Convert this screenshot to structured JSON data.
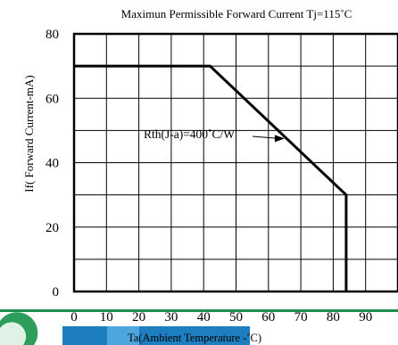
{
  "chart_data": {
    "type": "line",
    "title": "Maximun Permissible Forward Current Tj=115˚C",
    "xlabel": "Ta(Ambient Temperature -˚C)",
    "ylabel": "If( Forward Current-mA)",
    "xlim": [
      0,
      100
    ],
    "ylim": [
      0,
      80
    ],
    "x_ticks": [
      0,
      10,
      20,
      30,
      40,
      50,
      60,
      70,
      80,
      90
    ],
    "y_ticks": [
      0,
      20,
      40,
      60,
      80
    ],
    "x_grid_step": 10,
    "y_grid_step": 10,
    "grid": true,
    "series": [
      {
        "name": "",
        "x": [
          0,
          42,
          84,
          84
        ],
        "y": [
          70,
          70,
          30,
          0
        ]
      }
    ],
    "annotations": [
      {
        "text": "Rth(J-a)=400˚C/W",
        "arrow_to": {
          "x": 65,
          "y": 47.5
        }
      }
    ]
  },
  "colors": {
    "axis": "#000000",
    "curve": "#000000",
    "footer_bar": "#1f8f4f",
    "logo_blue": "#1d7fbf"
  }
}
